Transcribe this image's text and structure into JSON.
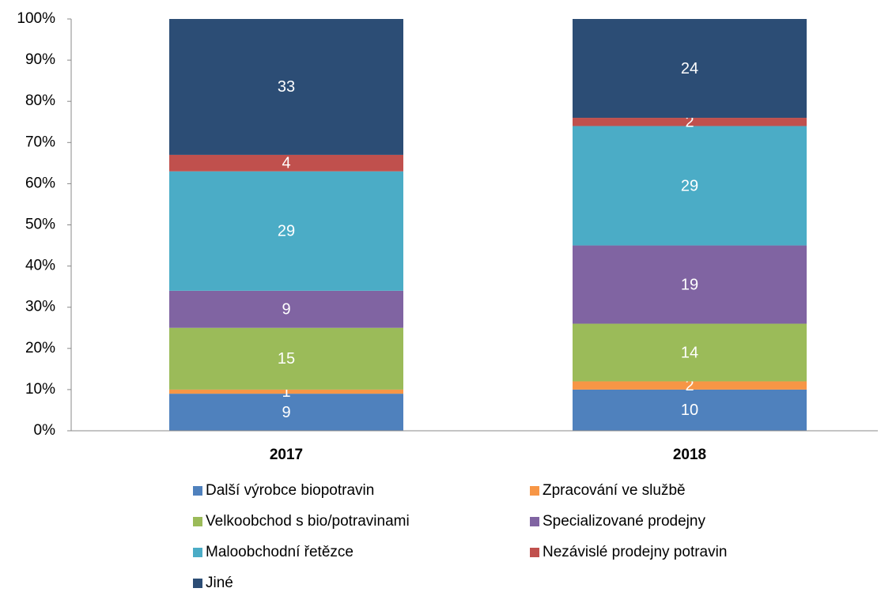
{
  "chart_data": {
    "type": "stacked_bar",
    "categories": [
      "2017",
      "2018"
    ],
    "series": [
      {
        "name": "Další výrobce biopotravin",
        "color": "#4f81bd",
        "values": [
          9,
          10
        ]
      },
      {
        "name": "Zpracování ve službě",
        "color": "#f79646",
        "values": [
          1,
          2
        ]
      },
      {
        "name": "Velkoobchod s bio/potravinami",
        "color": "#9bbb59",
        "values": [
          15,
          14
        ]
      },
      {
        "name": "Specializované prodejny",
        "color": "#8064a2",
        "values": [
          9,
          19
        ]
      },
      {
        "name": "Maloobchodní řetězce",
        "color": "#4bacc6",
        "values": [
          29,
          29
        ]
      },
      {
        "name": "Nezávislé prodejny potravin",
        "color": "#c0504d",
        "values": [
          4,
          2
        ]
      },
      {
        "name": "Jiné",
        "color": "#2c4d75",
        "values": [
          33,
          24
        ]
      }
    ],
    "ylim": [
      0,
      100
    ],
    "yticks": [
      {
        "value": 0,
        "label": "0%"
      },
      {
        "value": 10,
        "label": "10%"
      },
      {
        "value": 20,
        "label": "20%"
      },
      {
        "value": 30,
        "label": "30%"
      },
      {
        "value": 40,
        "label": "40%"
      },
      {
        "value": 50,
        "label": "50%"
      },
      {
        "value": 60,
        "label": "60%"
      },
      {
        "value": 70,
        "label": "70%"
      },
      {
        "value": 80,
        "label": "80%"
      },
      {
        "value": 90,
        "label": "90%"
      },
      {
        "value": 100,
        "label": "100%"
      }
    ],
    "grid": false,
    "legend": "bottom"
  }
}
